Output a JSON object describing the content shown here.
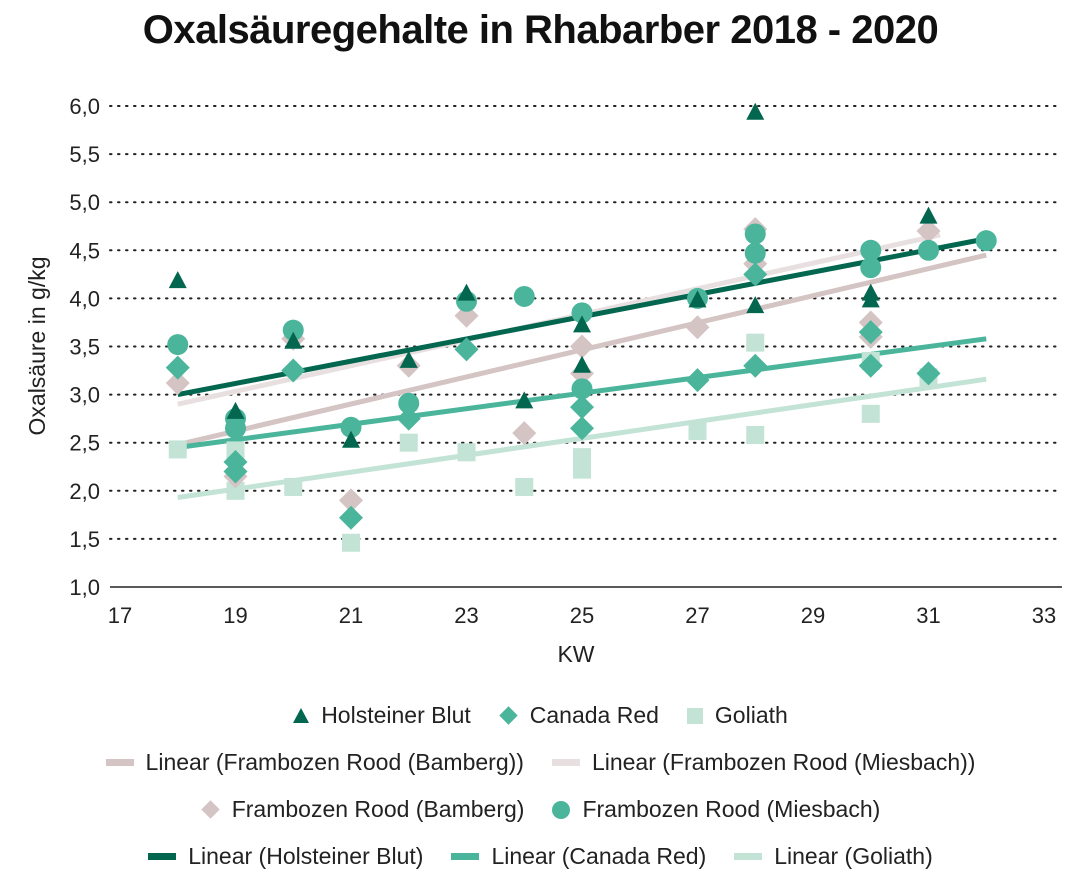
{
  "chart_data": {
    "type": "scatter",
    "title": "Oxalsäuregehalte in Rhabarber 2018 - 2020",
    "xlabel": "KW",
    "ylabel": "Oxalsäure in g/kg",
    "xlim": [
      17,
      33
    ],
    "ylim": [
      1.0,
      6.0
    ],
    "xticks": [
      "17",
      "19",
      "21",
      "23",
      "25",
      "27",
      "29",
      "31",
      "33"
    ],
    "xtick_values": [
      17,
      19,
      21,
      23,
      25,
      27,
      29,
      31,
      33
    ],
    "yticks": [
      "1,0",
      "1,5",
      "2,0",
      "2,5",
      "3,0",
      "3,5",
      "4,0",
      "4,5",
      "5,0",
      "5,5",
      "6,0"
    ],
    "ytick_values": [
      1.0,
      1.5,
      2.0,
      2.5,
      3.0,
      3.5,
      4.0,
      4.5,
      5.0,
      5.5,
      6.0
    ],
    "grid": "horizontal-dotted",
    "legend_position": "bottom",
    "series": [
      {
        "name": "Goliath",
        "marker": "square",
        "color": "#c2e3d6",
        "points": [
          [
            18,
            2.43
          ],
          [
            19,
            2.0
          ],
          [
            19,
            2.42
          ],
          [
            20,
            2.04
          ],
          [
            21,
            1.46
          ],
          [
            22,
            2.5
          ],
          [
            23,
            2.4
          ],
          [
            24,
            2.04
          ],
          [
            25,
            2.22
          ],
          [
            25,
            2.35
          ],
          [
            27,
            2.62
          ],
          [
            28,
            3.54
          ],
          [
            28,
            2.58
          ],
          [
            30,
            3.35
          ],
          [
            30,
            2.8
          ],
          [
            31,
            3.18
          ]
        ]
      },
      {
        "name": "Frambozen Rood (Bamberg)",
        "marker": "diamond",
        "color": "#d4c4c3",
        "points": [
          [
            18,
            3.12
          ],
          [
            19,
            2.15
          ],
          [
            20,
            3.58
          ],
          [
            21,
            1.9
          ],
          [
            22,
            3.3
          ],
          [
            23,
            3.82
          ],
          [
            24,
            2.6
          ],
          [
            25,
            3.5
          ],
          [
            25,
            3.22
          ],
          [
            27,
            3.7
          ],
          [
            28,
            4.72
          ],
          [
            28,
            4.36
          ],
          [
            30,
            3.75
          ],
          [
            30,
            3.6
          ],
          [
            31,
            4.7
          ]
        ]
      },
      {
        "name": "Canada Red",
        "marker": "diamond",
        "color": "#4bb59b",
        "points": [
          [
            18,
            3.28
          ],
          [
            19,
            2.3
          ],
          [
            19,
            2.2
          ],
          [
            20,
            3.25
          ],
          [
            21,
            1.72
          ],
          [
            22,
            2.75
          ],
          [
            23,
            3.47
          ],
          [
            25,
            2.87
          ],
          [
            25,
            2.65
          ],
          [
            27,
            3.15
          ],
          [
            28,
            4.25
          ],
          [
            28,
            3.3
          ],
          [
            30,
            3.65
          ],
          [
            30,
            3.3
          ],
          [
            31,
            3.22
          ]
        ]
      },
      {
        "name": "Frambozen Rood (Miesbach)",
        "marker": "circle",
        "color": "#4bb59b",
        "points": [
          [
            18,
            3.52
          ],
          [
            19,
            2.75
          ],
          [
            19,
            2.65
          ],
          [
            20,
            3.67
          ],
          [
            21,
            2.66
          ],
          [
            22,
            2.91
          ],
          [
            23,
            3.97
          ],
          [
            24,
            4.02
          ],
          [
            25,
            3.85
          ],
          [
            25,
            3.06
          ],
          [
            27,
            4.0
          ],
          [
            28,
            4.67
          ],
          [
            28,
            4.47
          ],
          [
            30,
            4.5
          ],
          [
            30,
            4.32
          ],
          [
            31,
            4.5
          ],
          [
            32,
            4.6
          ]
        ]
      },
      {
        "name": "Holsteiner Blut",
        "marker": "triangle",
        "color": "#03664f",
        "points": [
          [
            18,
            4.18
          ],
          [
            19,
            2.82
          ],
          [
            20,
            3.55
          ],
          [
            21,
            2.52
          ],
          [
            22,
            3.35
          ],
          [
            23,
            4.05
          ],
          [
            24,
            2.93
          ],
          [
            25,
            3.72
          ],
          [
            25,
            3.3
          ],
          [
            27,
            3.98
          ],
          [
            28,
            5.93
          ],
          [
            28,
            3.92
          ],
          [
            30,
            4.05
          ],
          [
            30,
            3.98
          ],
          [
            31,
            4.85
          ]
        ]
      }
    ],
    "trendlines": [
      {
        "name": "Linear (Goliath)",
        "color": "#c2e3d6",
        "x": [
          18,
          32
        ],
        "y": [
          1.93,
          3.16
        ]
      },
      {
        "name": "Linear (Frambozen Rood (Bamberg))",
        "color": "#d4c4c3",
        "x": [
          18,
          32
        ],
        "y": [
          2.48,
          4.45
        ]
      },
      {
        "name": "Linear (Canada Red)",
        "color": "#4bb59b",
        "x": [
          18,
          32
        ],
        "y": [
          2.45,
          3.58
        ]
      },
      {
        "name": "Linear (Frambozen Rood (Miesbach))",
        "color": "#e8e0e0",
        "x": [
          18,
          31.2
        ],
        "y": [
          2.9,
          4.66
        ]
      },
      {
        "name": "Linear (Holsteiner Blut)",
        "color": "#03664f",
        "x": [
          18,
          32
        ],
        "y": [
          3.0,
          4.62
        ]
      }
    ]
  },
  "legend": {
    "rows": [
      [
        {
          "label": "Holsteiner Blut",
          "symbol": "triangle",
          "color": "#03664f"
        },
        {
          "label": "Canada Red",
          "symbol": "diamond",
          "color": "#4bb59b"
        },
        {
          "label": "Goliath",
          "symbol": "square",
          "color": "#c2e3d6"
        }
      ],
      [
        {
          "label": "Linear (Frambozen Rood (Bamberg))",
          "symbol": "line",
          "color": "#d4c4c3"
        },
        {
          "label": "Linear (Frambozen Rood (Miesbach))",
          "symbol": "line",
          "color": "#e8e0e0"
        }
      ],
      [
        {
          "label": "Frambozen Rood (Bamberg)",
          "symbol": "diamond",
          "color": "#d4c4c3"
        },
        {
          "label": "Frambozen Rood (Miesbach)",
          "symbol": "circle",
          "color": "#4bb59b"
        }
      ],
      [
        {
          "label": "Linear (Holsteiner Blut)",
          "symbol": "line",
          "color": "#03664f"
        },
        {
          "label": "Linear (Canada Red)",
          "symbol": "line",
          "color": "#4bb59b"
        },
        {
          "label": "Linear (Goliath)",
          "symbol": "line",
          "color": "#c2e3d6"
        }
      ]
    ]
  }
}
